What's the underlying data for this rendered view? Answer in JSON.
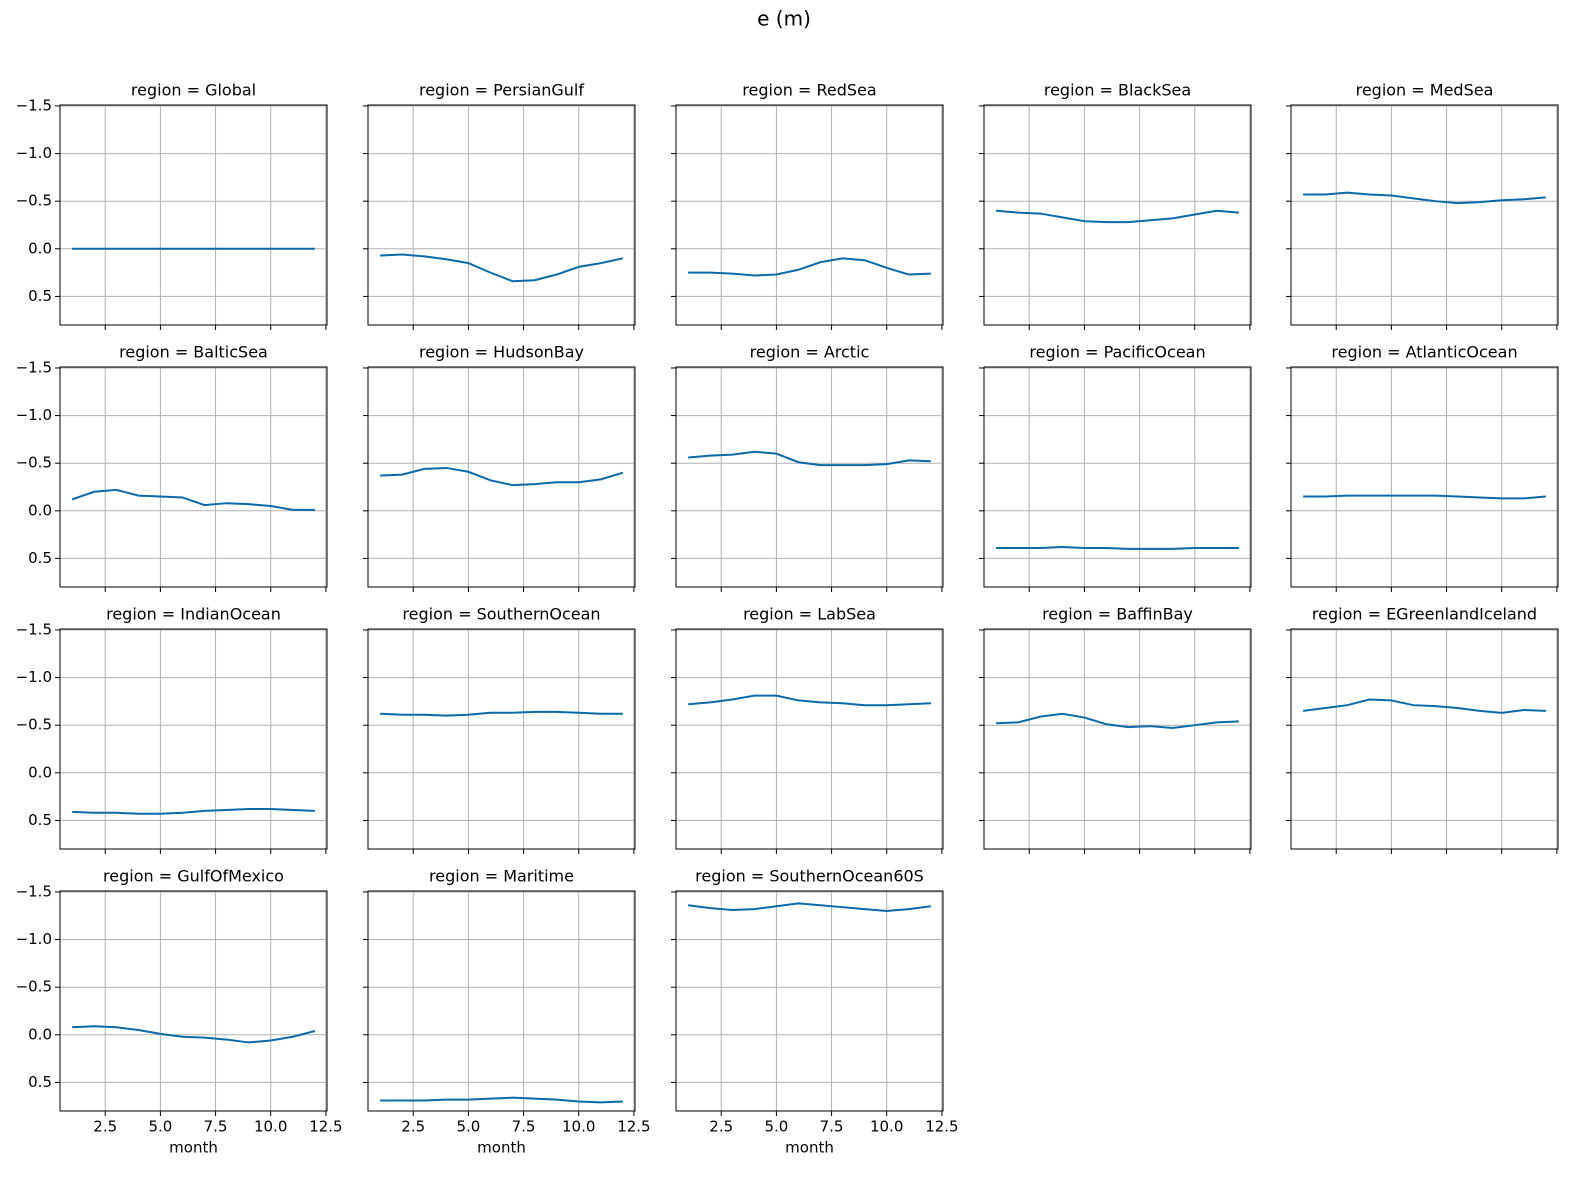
{
  "title": "e (m)",
  "xlabel": "month",
  "x": [
    1,
    2,
    3,
    4,
    5,
    6,
    7,
    8,
    9,
    10,
    11,
    12
  ],
  "xlim": [
    0.45,
    12.55
  ],
  "xticks": [
    2.5,
    {
      "value": 5,
      "label": "5.0"
    },
    7.5,
    {
      "value": 10,
      "label": "10.0"
    },
    12.5
  ],
  "ylim": [
    0.8,
    -1.51
  ],
  "yticks": [
    {
      "value": -1.5,
      "label": "−1.5"
    },
    {
      "value": -1.0,
      "label": "−1.0"
    },
    {
      "value": -0.5,
      "label": "−0.5"
    },
    {
      "value": 0,
      "label": "0.0"
    },
    0.5
  ],
  "grid": true,
  "color": "#0c6aa8",
  "chart_data": [
    {
      "type": "line",
      "title": "region = Global",
      "values": [
        0,
        0,
        0,
        0,
        0,
        0,
        0,
        0,
        0,
        0,
        0,
        0
      ]
    },
    {
      "type": "line",
      "title": "region = PersianGulf",
      "values": [
        0.07,
        0.06,
        0.08,
        0.11,
        0.15,
        0.25,
        0.34,
        0.33,
        0.27,
        0.19,
        0.15,
        0.1
      ]
    },
    {
      "type": "line",
      "title": "region = RedSea",
      "values": [
        0.25,
        0.25,
        0.26,
        0.28,
        0.27,
        0.22,
        0.14,
        0.1,
        0.12,
        0.2,
        0.27,
        0.26
      ]
    },
    {
      "type": "line",
      "title": "region = BlackSea",
      "values": [
        -0.4,
        -0.38,
        -0.37,
        -0.33,
        -0.29,
        -0.28,
        -0.28,
        -0.3,
        -0.32,
        -0.36,
        -0.4,
        -0.38
      ]
    },
    {
      "type": "line",
      "title": "region = MedSea",
      "values": [
        -0.57,
        -0.57,
        -0.59,
        -0.57,
        -0.56,
        -0.53,
        -0.5,
        -0.48,
        -0.49,
        -0.51,
        -0.52,
        -0.54
      ]
    },
    {
      "type": "line",
      "title": "region = BalticSea",
      "values": [
        -0.12,
        -0.2,
        -0.22,
        -0.16,
        -0.15,
        -0.14,
        -0.06,
        -0.08,
        -0.07,
        -0.05,
        -0.01,
        -0.01
      ]
    },
    {
      "type": "line",
      "title": "region = HudsonBay",
      "values": [
        -0.37,
        -0.38,
        -0.44,
        -0.45,
        -0.41,
        -0.32,
        -0.27,
        -0.28,
        -0.3,
        -0.3,
        -0.33,
        -0.4
      ]
    },
    {
      "type": "line",
      "title": "region = Arctic",
      "values": [
        -0.56,
        -0.58,
        -0.59,
        -0.62,
        -0.6,
        -0.51,
        -0.48,
        -0.48,
        -0.48,
        -0.49,
        -0.53,
        -0.52
      ]
    },
    {
      "type": "line",
      "title": "region = PacificOcean",
      "values": [
        0.39,
        0.39,
        0.39,
        0.38,
        0.39,
        0.39,
        0.4,
        0.4,
        0.4,
        0.39,
        0.39,
        0.39
      ]
    },
    {
      "type": "line",
      "title": "region = AtlanticOcean",
      "values": [
        -0.15,
        -0.15,
        -0.16,
        -0.16,
        -0.16,
        -0.16,
        -0.16,
        -0.15,
        -0.14,
        -0.13,
        -0.13,
        -0.15
      ]
    },
    {
      "type": "line",
      "title": "region = IndianOcean",
      "values": [
        0.41,
        0.42,
        0.42,
        0.43,
        0.43,
        0.42,
        0.4,
        0.39,
        0.38,
        0.38,
        0.39,
        0.4
      ]
    },
    {
      "type": "line",
      "title": "region = SouthernOcean",
      "values": [
        -0.62,
        -0.61,
        -0.61,
        -0.6,
        -0.61,
        -0.63,
        -0.63,
        -0.64,
        -0.64,
        -0.63,
        -0.62,
        -0.62
      ]
    },
    {
      "type": "line",
      "title": "region = LabSea",
      "values": [
        -0.72,
        -0.74,
        -0.77,
        -0.81,
        -0.81,
        -0.76,
        -0.74,
        -0.73,
        -0.71,
        -0.71,
        -0.72,
        -0.73
      ]
    },
    {
      "type": "line",
      "title": "region = BaffinBay",
      "values": [
        -0.52,
        -0.53,
        -0.59,
        -0.62,
        -0.58,
        -0.51,
        -0.48,
        -0.49,
        -0.47,
        -0.5,
        -0.53,
        -0.54
      ]
    },
    {
      "type": "line",
      "title": "region = EGreenlandIceland",
      "values": [
        -0.65,
        -0.68,
        -0.71,
        -0.77,
        -0.76,
        -0.71,
        -0.7,
        -0.68,
        -0.65,
        -0.63,
        -0.66,
        -0.65
      ]
    },
    {
      "type": "line",
      "title": "region = GulfOfMexico",
      "values": [
        -0.08,
        -0.09,
        -0.08,
        -0.05,
        -0.01,
        0.02,
        0.03,
        0.05,
        0.08,
        0.06,
        0.02,
        -0.04
      ]
    },
    {
      "type": "line",
      "title": "region = Maritime",
      "values": [
        0.69,
        0.69,
        0.69,
        0.68,
        0.68,
        0.67,
        0.66,
        0.67,
        0.68,
        0.7,
        0.71,
        0.7
      ]
    },
    {
      "type": "line",
      "title": "region = SouthernOcean60S",
      "values": [
        -1.36,
        -1.33,
        -1.31,
        -1.32,
        -1.35,
        -1.38,
        -1.36,
        -1.34,
        -1.32,
        -1.3,
        -1.32,
        -1.35
      ]
    }
  ]
}
